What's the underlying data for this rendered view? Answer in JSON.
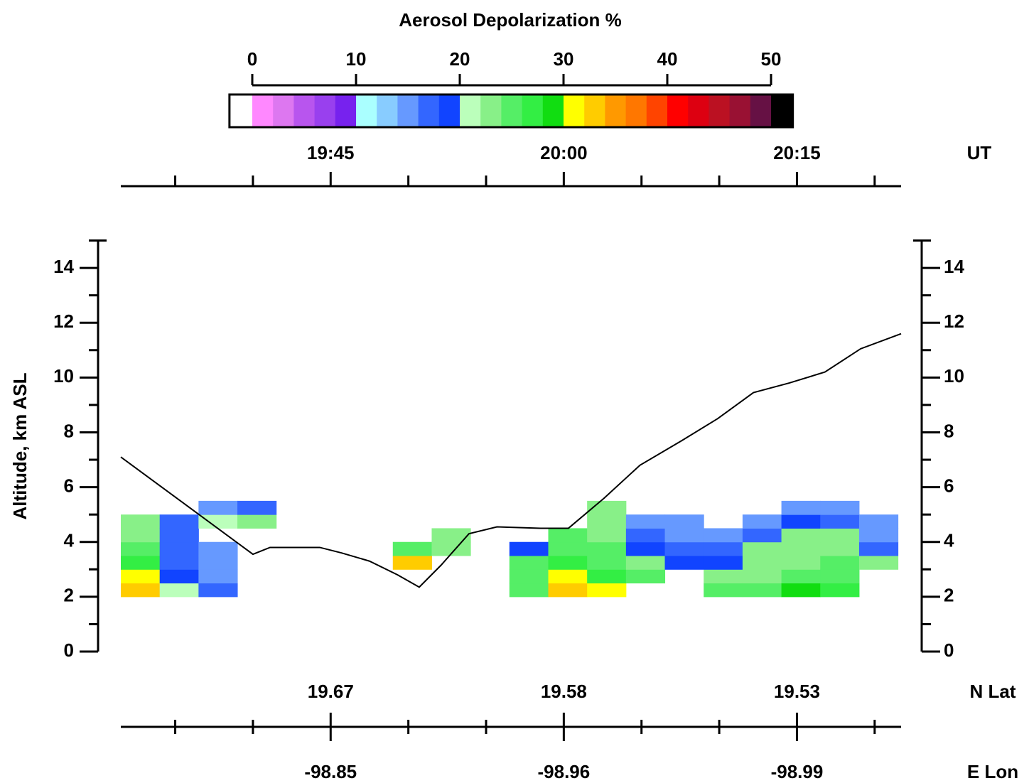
{
  "chart_data": {
    "type": "heatmap",
    "title": "Aerosol Depolarization %",
    "y_label": "Altitude, km ASL",
    "colorbar": {
      "lim": [
        0,
        50
      ],
      "ticks": [
        0,
        10,
        20,
        30,
        40,
        50
      ],
      "under_color": "#ffffff",
      "over_color": "#000000",
      "colors": [
        "#ff88ff",
        "#dd77f0",
        "#b855ee",
        "#9940ee",
        "#7722ee",
        "#aaffff",
        "#88ccff",
        "#6699ff",
        "#3366ff",
        "#1144ff",
        "#bbffbb",
        "#88f088",
        "#55ee66",
        "#33ee44",
        "#11dd11",
        "#ffff00",
        "#ffcc00",
        "#ff9900",
        "#ff7700",
        "#ff4400",
        "#ff0000",
        "#dd0011",
        "#bb1122",
        "#991133",
        "#661144"
      ]
    },
    "xlim": [
      1171.5,
      1221.7
    ],
    "xticks": [
      {
        "value": 1185,
        "label": "19:45"
      },
      {
        "value": 1200,
        "label": "20:00"
      },
      {
        "value": 1215,
        "label": "20:15"
      }
    ],
    "xminorticks": [
      1175,
      1180,
      1190,
      1195,
      1205,
      1210,
      1220
    ],
    "x_unit": "UT",
    "lat_label": "N Lat",
    "lat_ticks": [
      {
        "value": 1185,
        "label": "19.67"
      },
      {
        "value": 1200,
        "label": "19.58"
      },
      {
        "value": 1215,
        "label": "19.53"
      }
    ],
    "lon_label": "E Lon",
    "lon_ticks": [
      {
        "value": 1185,
        "label": "-98.85"
      },
      {
        "value": 1200,
        "label": "-98.96"
      },
      {
        "value": 1215,
        "label": "-98.99"
      }
    ],
    "ylim": [
      0,
      15
    ],
    "yticks": [
      0,
      2,
      4,
      6,
      8,
      10,
      12,
      14
    ],
    "yminorticks": [
      1,
      3,
      5,
      7,
      9,
      11,
      13,
      15
    ],
    "aircraft_altitude": {
      "color": "#000000",
      "x": [
        1171.5,
        1180.0,
        1181.1,
        1184.3,
        1185.7,
        1187.5,
        1189.3,
        1190.7,
        1192.1,
        1193.9,
        1195.7,
        1198.5,
        1200.3,
        1202.6,
        1204.9,
        1207.6,
        1209.9,
        1212.2,
        1214.5,
        1216.8,
        1219.1,
        1221.7
      ],
      "values": [
        7.1,
        3.55,
        3.8,
        3.8,
        3.6,
        3.3,
        2.8,
        2.35,
        3.15,
        4.3,
        4.55,
        4.5,
        4.5,
        5.6,
        6.8,
        7.7,
        8.5,
        9.45,
        9.8,
        10.2,
        11.05,
        11.6
      ]
    },
    "curtain": {
      "x_edges": [
        1171.5,
        1174,
        1176.5,
        1179,
        1181.5,
        1184,
        1186.5,
        1189,
        1191.5,
        1194,
        1196.5,
        1199,
        1201.5,
        1204,
        1206.5,
        1209,
        1211.5,
        1214,
        1216.5,
        1219,
        1221.5
      ],
      "y_edges": [
        2.0,
        2.5,
        3.0,
        3.5,
        4.0,
        4.5,
        5.0,
        5.5,
        6.0
      ],
      "values": [
        [
          33,
          31,
          26,
          24,
          22,
          23,
          null,
          null
        ],
        [
          21,
          19,
          17,
          16,
          16,
          17,
          null,
          null
        ],
        [
          16,
          15,
          15,
          14,
          null,
          20,
          15,
          null
        ],
        [
          null,
          null,
          null,
          null,
          null,
          22,
          16,
          null
        ],
        [
          null,
          null,
          null,
          null,
          null,
          null,
          null,
          null
        ],
        [
          null,
          null,
          null,
          null,
          null,
          null,
          null,
          null
        ],
        [
          null,
          null,
          null,
          null,
          null,
          null,
          null,
          null
        ],
        [
          null,
          null,
          32,
          24,
          null,
          null,
          null,
          null
        ],
        [
          null,
          null,
          null,
          23,
          22,
          null,
          null,
          null
        ],
        [
          null,
          null,
          null,
          null,
          null,
          null,
          null,
          null
        ],
        [
          25,
          24,
          24,
          18,
          null,
          null,
          null,
          null
        ],
        [
          33,
          30,
          26,
          25,
          24,
          null,
          null,
          null
        ],
        [
          30,
          27,
          25,
          24,
          23,
          23,
          22,
          null
        ],
        [
          null,
          24,
          22,
          19,
          17,
          15,
          null,
          null
        ],
        [
          null,
          null,
          18,
          16,
          15,
          15,
          null,
          null
        ],
        [
          24,
          22,
          18,
          16,
          14,
          null,
          null,
          null
        ],
        [
          24,
          22,
          23,
          22,
          16,
          15,
          null,
          null
        ],
        [
          28,
          24,
          23,
          23,
          22,
          18,
          15,
          null
        ],
        [
          26,
          25,
          24,
          23,
          22,
          17,
          14,
          null
        ],
        [
          null,
          null,
          22,
          17,
          15,
          14,
          null,
          null
        ]
      ]
    }
  }
}
